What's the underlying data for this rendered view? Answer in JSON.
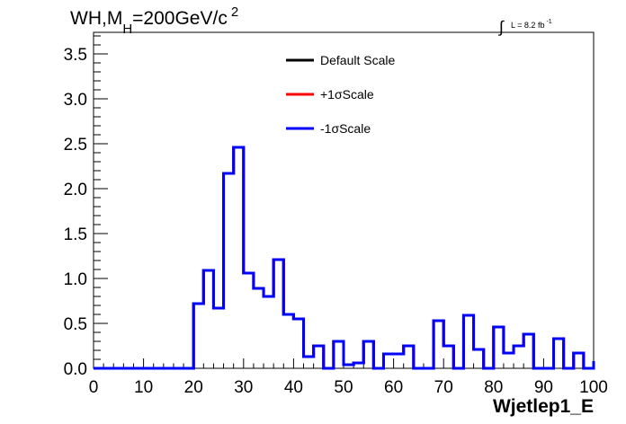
{
  "chart_data": {
    "type": "line",
    "title_main": "WH,M",
    "title_sub": "H",
    "title_tail": "=200GeV/c",
    "title_sup": "2",
    "lumi_text": "L = 8.2 fb",
    "lumi_sup": "-1",
    "xlabel": "Wjetlep1_E",
    "ylabel": "",
    "xlim": [
      0,
      100
    ],
    "ylim": [
      0,
      3.74
    ],
    "x_ticks": [
      0,
      10,
      20,
      30,
      40,
      50,
      60,
      70,
      80,
      90,
      100
    ],
    "x_tick_labels": [
      "0",
      "10",
      "20",
      "30",
      "40",
      "50",
      "60",
      "70",
      "80",
      "90",
      "100"
    ],
    "y_ticks": [
      0,
      0.5,
      1.0,
      1.5,
      2.0,
      2.5,
      3.0,
      3.5
    ],
    "y_tick_labels": [
      "0.0",
      "0.5",
      "1.0",
      "1.5",
      "2.0",
      "2.5",
      "3.0",
      "3.5"
    ],
    "bin_edges": [
      0,
      2,
      4,
      6,
      8,
      10,
      12,
      14,
      16,
      18,
      20,
      22,
      24,
      26,
      28,
      30,
      32,
      34,
      36,
      38,
      40,
      42,
      44,
      46,
      48,
      50,
      52,
      54,
      56,
      58,
      60,
      62,
      64,
      66,
      68,
      70,
      72,
      74,
      76,
      78,
      80,
      82,
      84,
      86,
      88,
      90,
      92,
      94,
      96,
      98,
      100
    ],
    "series": [
      {
        "name": "Default Scale",
        "color": "#000000",
        "values": [
          0,
          0,
          0,
          0,
          0,
          0,
          0,
          0,
          0,
          0,
          0.72,
          1.09,
          0.67,
          2.17,
          2.46,
          1.06,
          0.89,
          0.8,
          1.21,
          0.6,
          0.55,
          0.13,
          0.25,
          0,
          0.3,
          0.04,
          0.06,
          0.3,
          0,
          0.16,
          0.16,
          0.25,
          0,
          0,
          0.53,
          0.25,
          0,
          0.59,
          0.21,
          0,
          0.46,
          0.17,
          0.25,
          0.38,
          0,
          0,
          0.33,
          0,
          0.17,
          0,
          0.08
        ]
      },
      {
        "name": "+1σScale",
        "color": "#ff0000",
        "values": [
          0,
          0,
          0,
          0,
          0,
          0,
          0,
          0,
          0,
          0,
          0.72,
          1.09,
          0.67,
          2.17,
          2.46,
          1.06,
          0.89,
          0.8,
          1.21,
          0.6,
          0.55,
          0.13,
          0.25,
          0,
          0.3,
          0.04,
          0.06,
          0.3,
          0,
          0.16,
          0.16,
          0.25,
          0,
          0,
          0.53,
          0.25,
          0,
          0.59,
          0.21,
          0,
          0.46,
          0.17,
          0.25,
          0.38,
          0,
          0,
          0.33,
          0,
          0.17,
          0,
          0.08
        ]
      },
      {
        "name": "-1σScale",
        "color": "#0000ff",
        "values": [
          0,
          0,
          0,
          0,
          0,
          0,
          0,
          0,
          0,
          0,
          0.72,
          1.09,
          0.67,
          2.17,
          2.46,
          1.06,
          0.89,
          0.8,
          1.21,
          0.6,
          0.55,
          0.13,
          0.25,
          0,
          0.3,
          0.04,
          0.06,
          0.3,
          0,
          0.16,
          0.16,
          0.25,
          0,
          0,
          0.53,
          0.25,
          0,
          0.59,
          0.21,
          0,
          0.46,
          0.17,
          0.25,
          0.38,
          0,
          0,
          0.33,
          0,
          0.17,
          0,
          0.08
        ]
      }
    ],
    "legend_placement": "top-center",
    "grid": false
  }
}
